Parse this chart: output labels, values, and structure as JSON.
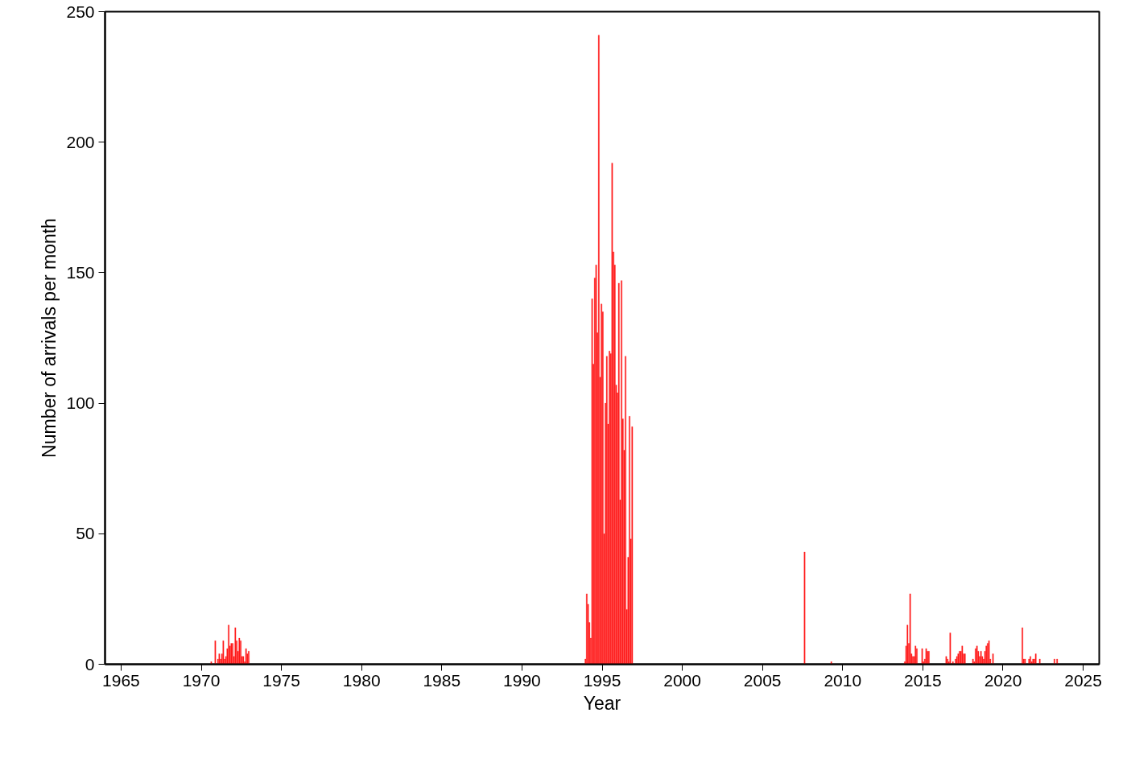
{
  "chart_data": {
    "type": "bar",
    "xlabel": "Year",
    "ylabel": "Number of arrivals per month",
    "color": "#ff1a1a",
    "x": [
      "1970-08",
      "1970-11",
      "1971-01",
      "1971-02",
      "1971-03",
      "1971-04",
      "1971-05",
      "1971-06",
      "1971-07",
      "1971-08",
      "1971-09",
      "1971-10",
      "1971-11",
      "1971-12",
      "1972-01",
      "1972-02",
      "1972-03",
      "1972-04",
      "1972-05",
      "1972-06",
      "1972-07",
      "1972-08",
      "1972-09",
      "1972-10",
      "1972-11",
      "1972-12",
      "1993-12",
      "1994-01",
      "1994-02",
      "1994-03",
      "1994-04",
      "1994-05",
      "1994-06",
      "1994-07",
      "1994-08",
      "1994-09",
      "1994-10",
      "1994-11",
      "1994-12",
      "1995-01",
      "1995-02",
      "1995-03",
      "1995-04",
      "1995-05",
      "1995-06",
      "1995-07",
      "1995-08",
      "1995-09",
      "1995-10",
      "1995-11",
      "1995-12",
      "1996-01",
      "1996-02",
      "1996-03",
      "1996-04",
      "1996-05",
      "1996-06",
      "1996-07",
      "1996-08",
      "1996-09",
      "1996-10",
      "1996-11",
      "2007-08",
      "2009-04",
      "2013-11",
      "2013-12",
      "2014-01",
      "2014-02",
      "2014-03",
      "2014-04",
      "2014-05",
      "2014-06",
      "2014-07",
      "2014-08",
      "2014-12",
      "2015-01",
      "2015-02",
      "2015-03",
      "2015-04",
      "2015-05",
      "2016-06",
      "2016-07",
      "2016-08",
      "2016-09",
      "2016-11",
      "2017-01",
      "2017-02",
      "2017-03",
      "2017-04",
      "2017-05",
      "2017-06",
      "2017-07",
      "2017-08",
      "2018-02",
      "2018-03",
      "2018-04",
      "2018-05",
      "2018-06",
      "2018-07",
      "2018-08",
      "2018-09",
      "2018-10",
      "2018-11",
      "2018-12",
      "2019-01",
      "2019-02",
      "2019-03",
      "2019-05",
      "2021-03",
      "2021-04",
      "2021-05",
      "2021-08",
      "2021-09",
      "2021-10",
      "2021-11",
      "2021-12",
      "2022-01",
      "2022-04",
      "2023-03",
      "2023-05"
    ],
    "values": [
      1,
      9,
      2,
      4,
      2,
      4,
      9,
      2,
      3,
      6,
      15,
      7,
      8,
      8,
      3,
      14,
      9,
      5,
      10,
      9,
      3,
      3,
      1,
      6,
      4,
      5,
      2,
      27,
      23,
      16,
      10,
      140,
      115,
      148,
      153,
      127,
      241,
      110,
      138,
      135,
      50,
      100,
      118,
      92,
      120,
      119,
      192,
      158,
      153,
      107,
      104,
      146,
      63,
      147,
      94,
      82,
      118,
      21,
      41,
      95,
      48,
      91,
      43,
      1,
      1,
      7,
      15,
      8,
      27,
      4,
      3,
      3,
      7,
      6,
      6,
      1,
      2,
      6,
      5,
      5,
      3,
      2,
      1,
      12,
      1,
      2,
      3,
      4,
      5,
      5,
      7,
      4,
      4,
      2,
      1,
      6,
      7,
      5,
      3,
      5,
      3,
      2,
      5,
      7,
      8,
      9,
      2,
      4,
      14,
      2,
      2,
      2,
      3,
      1,
      2,
      2,
      4,
      2,
      2,
      2
    ],
    "xlim": [
      "1964",
      "2026"
    ],
    "xticks": [
      "1965",
      "1970",
      "1975",
      "1980",
      "1985",
      "1990",
      "1995",
      "2000",
      "2005",
      "2010",
      "2015",
      "2020",
      "2025"
    ],
    "ylim": [
      0,
      250
    ],
    "yticks": [
      0,
      50,
      100,
      150,
      200,
      250
    ],
    "grid": false
  }
}
